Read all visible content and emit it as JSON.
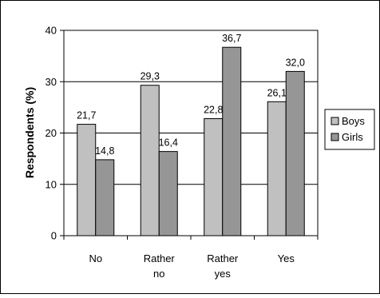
{
  "chart_data": {
    "type": "bar",
    "ylabel": "Respondents (%)",
    "xlabel": "",
    "ylim": [
      0,
      40
    ],
    "yticks": [
      "0",
      "10",
      "20",
      "30",
      "40"
    ],
    "grid": true,
    "legend_position": "right",
    "categories": [
      {
        "lines": [
          "No"
        ]
      },
      {
        "lines": [
          "Rather",
          "no"
        ]
      },
      {
        "lines": [
          "Rather",
          "yes"
        ]
      },
      {
        "lines": [
          "Yes"
        ]
      }
    ],
    "series": [
      {
        "name": "Boys",
        "color": "#c0c0c0",
        "values": [
          21.7,
          29.3,
          22.8,
          26.1
        ],
        "labels": [
          "21,7",
          "29,3",
          "22,8",
          "26,1"
        ]
      },
      {
        "name": "Girls",
        "color": "#969696",
        "values": [
          14.8,
          16.4,
          36.7,
          32.0
        ],
        "labels": [
          "14,8",
          "16,4",
          "36,7",
          "32,0"
        ]
      }
    ]
  },
  "colors": {
    "plot_background": "#ffffff",
    "gridline": "#000000",
    "bar_outline": "#000000",
    "frame": "#000000"
  }
}
